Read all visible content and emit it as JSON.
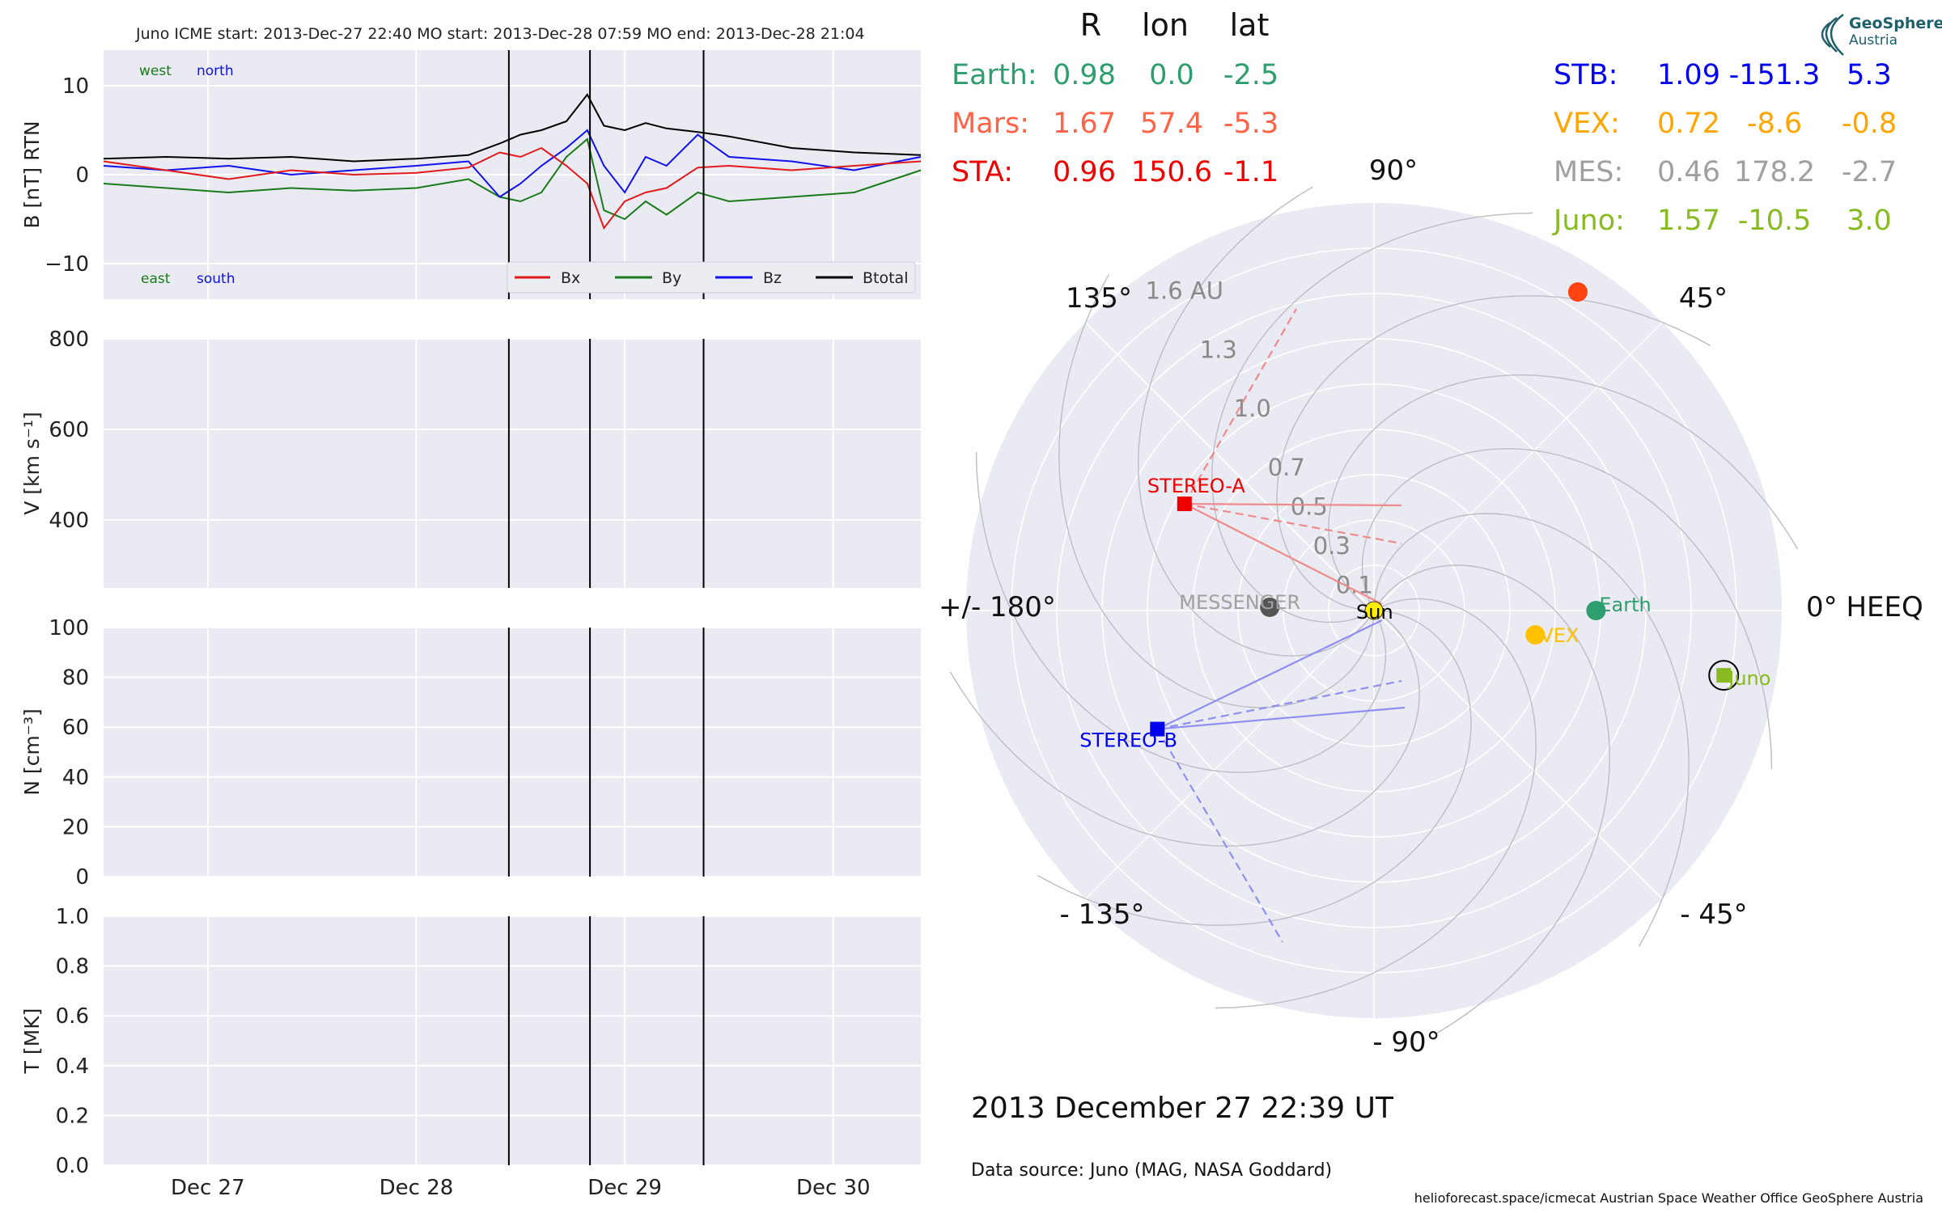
{
  "figure_title": "Juno    ICME start: 2013-Dec-27 22:40   MO start: 2013-Dec-28 07:59   MO end: 2013-Dec-28 21:04",
  "colors": {
    "bx": "#e31a1c",
    "by": "#1a7a1a",
    "bz": "#1111ee",
    "btotal": "#000000",
    "panel_bg": "#e9eaf2",
    "earth": "#2e9e6e",
    "mars": "#ff5533",
    "sta": "#ee0000",
    "stb": "#0000ee",
    "vex": "#ffa500",
    "mes": "#999999",
    "juno": "#88bb22"
  },
  "chart_data": [
    {
      "type": "line",
      "panel": "magnetic_field",
      "ylabel": "B [nT] RTN",
      "ylim": [
        -14,
        14
      ],
      "yticks": [
        "10",
        "0",
        "−10"
      ],
      "xlim": [
        0,
        3.92
      ],
      "x_unit": "days since 2013-Dec-26 12:00 (x axis shows dates)",
      "xticks": [
        "Dec 27",
        "Dec 28",
        "Dec 29",
        "Dec 30"
      ],
      "corner_labels": {
        "west": "west",
        "north": "north",
        "east": "east",
        "south": "south"
      },
      "legend": [
        "Bx",
        "By",
        "Bz",
        "Btotal"
      ],
      "series": [
        {
          "name": "Bx",
          "x": [
            0,
            0.3,
            0.6,
            0.9,
            1.2,
            1.5,
            1.75,
            1.9,
            2.0,
            2.1,
            2.22,
            2.32,
            2.4,
            2.5,
            2.6,
            2.7,
            2.85,
            3.0,
            3.3,
            3.6,
            3.92
          ],
          "y": [
            1.5,
            0.5,
            -0.5,
            0.5,
            0,
            0.2,
            0.8,
            2.5,
            2,
            3,
            1,
            -1,
            -6,
            -3,
            -2,
            -1.5,
            0.8,
            1,
            0.5,
            1,
            1.5
          ]
        },
        {
          "name": "By",
          "x": [
            0,
            0.3,
            0.6,
            0.9,
            1.2,
            1.5,
            1.75,
            1.9,
            2.0,
            2.1,
            2.22,
            2.32,
            2.4,
            2.5,
            2.6,
            2.7,
            2.85,
            3.0,
            3.3,
            3.6,
            3.92
          ],
          "y": [
            -1,
            -1.5,
            -2,
            -1.5,
            -1.8,
            -1.5,
            -0.5,
            -2.5,
            -3,
            -2,
            2,
            4,
            -4,
            -5,
            -3,
            -4.5,
            -2,
            -3,
            -2.5,
            -2,
            0.5
          ]
        },
        {
          "name": "Bz",
          "x": [
            0,
            0.3,
            0.6,
            0.9,
            1.2,
            1.5,
            1.75,
            1.9,
            2.0,
            2.1,
            2.22,
            2.32,
            2.4,
            2.5,
            2.6,
            2.7,
            2.85,
            3.0,
            3.3,
            3.6,
            3.92
          ],
          "y": [
            1,
            0.5,
            1,
            0,
            0.5,
            1,
            1.5,
            -2.5,
            -1,
            1,
            3,
            5,
            1,
            -2,
            2,
            1,
            4.5,
            2,
            1.5,
            0.5,
            2
          ]
        },
        {
          "name": "Btotal",
          "x": [
            0,
            0.3,
            0.6,
            0.9,
            1.2,
            1.5,
            1.75,
            1.9,
            2.0,
            2.1,
            2.22,
            2.32,
            2.4,
            2.5,
            2.6,
            2.7,
            2.85,
            3.0,
            3.3,
            3.6,
            3.92
          ],
          "y": [
            1.8,
            2,
            1.8,
            2,
            1.5,
            1.8,
            2.2,
            3.5,
            4.5,
            5,
            6,
            9,
            5.5,
            5,
            5.8,
            5.2,
            4.8,
            4.3,
            3,
            2.5,
            2.2
          ]
        }
      ],
      "event_lines_x": [
        1.944,
        2.333,
        2.878
      ]
    },
    {
      "type": "line",
      "panel": "velocity",
      "ylabel": "V [km s⁻¹]",
      "ylim": [
        250,
        800
      ],
      "yticks": [
        "800",
        "600",
        "400"
      ],
      "xticks": [
        "Dec 27",
        "Dec 28",
        "Dec 29",
        "Dec 30"
      ],
      "series": [],
      "event_lines_x": [
        1.944,
        2.333,
        2.878
      ]
    },
    {
      "type": "line",
      "panel": "density",
      "ylabel": "N [cm⁻³]",
      "ylim": [
        0,
        100
      ],
      "yticks": [
        "100",
        "80",
        "60",
        "40",
        "20",
        "0"
      ],
      "xticks": [
        "Dec 27",
        "Dec 28",
        "Dec 29",
        "Dec 30"
      ],
      "series": [],
      "event_lines_x": [
        1.944,
        2.333,
        2.878
      ]
    },
    {
      "type": "line",
      "panel": "temperature",
      "ylabel": "T [MK]",
      "ylim": [
        0,
        1
      ],
      "yticks": [
        "1.0",
        "0.8",
        "0.6",
        "0.4",
        "0.2",
        "0.0"
      ],
      "xticks": [
        "Dec 27",
        "Dec 28",
        "Dec 29",
        "Dec 30"
      ],
      "series": [],
      "event_lines_x": [
        1.944,
        2.333,
        2.878
      ]
    },
    {
      "type": "scatter",
      "panel": "polar_positions",
      "coordinate_system": "HEEQ",
      "r_unit": "AU",
      "rlim": [
        0,
        1.8
      ],
      "r_labels": [
        "0.1",
        "0.3",
        "0.5",
        "0.7",
        "1.0",
        "1.3",
        "1.6 AU"
      ],
      "angle_labels": [
        "90°",
        "45°",
        "0° HEEQ",
        "- 45°",
        "- 90°",
        "- 135°",
        "+/- 180°",
        "135°"
      ],
      "bodies": [
        {
          "label": "Sun",
          "r": 0,
          "lon": 0,
          "color": "#ffee00"
        },
        {
          "label": "Earth",
          "r": 0.98,
          "lon": 0.0,
          "color": "#2e9e6e"
        },
        {
          "label": "",
          "r": 1.67,
          "lon": 57.4,
          "color": "#ff4411",
          "note": "Mars (unlabeled marker)"
        },
        {
          "label": "STEREO-A",
          "r": 0.96,
          "lon": 150.6,
          "color": "#ee0000",
          "marker": "square"
        },
        {
          "label": "STEREO-B",
          "r": 1.09,
          "lon": -151.3,
          "color": "#0000ee",
          "marker": "square"
        },
        {
          "label": "VEX",
          "r": 0.72,
          "lon": -8.6,
          "color": "#ffc000"
        },
        {
          "label": "MESSENGER",
          "r": 0.46,
          "lon": 178.2,
          "color": "#555555"
        },
        {
          "label": "Juno",
          "r": 1.57,
          "lon": -10.5,
          "color": "#88bb22",
          "marker": "square",
          "highlight": true
        }
      ]
    }
  ],
  "position_table": {
    "headers": [
      "R",
      "lon",
      "lat"
    ],
    "left_rows": [
      {
        "name": "Earth:",
        "r": "0.98",
        "lon": "0.0",
        "lat": "-2.5",
        "color": "#2e9e6e"
      },
      {
        "name": "Mars:",
        "r": "1.67",
        "lon": "57.4",
        "lat": "-5.3",
        "color": "#ff6347"
      },
      {
        "name": "STA:",
        "r": "0.96",
        "lon": "150.6",
        "lat": "-1.1",
        "color": "#ee0000"
      }
    ],
    "right_rows": [
      {
        "name": "STB:",
        "r": "1.09",
        "lon": "-151.3",
        "lat": "5.3",
        "color": "#0000ee"
      },
      {
        "name": "VEX:",
        "r": "0.72",
        "lon": "-8.6",
        "lat": "-0.8",
        "color": "#ffa500"
      },
      {
        "name": "MES:",
        "r": "0.46",
        "lon": "178.2",
        "lat": "-2.7",
        "color": "#a0a0a0"
      },
      {
        "name": "Juno:",
        "r": "1.57",
        "lon": "-10.5",
        "lat": "3.0",
        "color": "#88bb22"
      }
    ]
  },
  "timestamp": "2013 December 27  22:39 UT",
  "data_source": "Data source: Juno (MAG, NASA Goddard)",
  "footer": "helioforecast.space/icmecat   Austrian Space Weather Office   GeoSphere Austria",
  "logo": {
    "line1": "GeoSphere",
    "line2": "Austria"
  }
}
